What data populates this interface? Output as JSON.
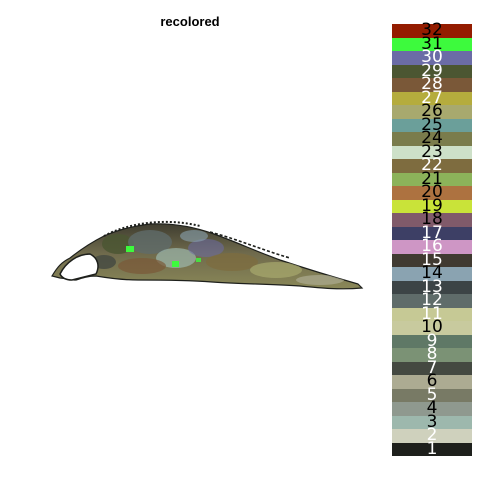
{
  "chart_data": {
    "type": "heatmap",
    "title": "recolored",
    "legend_position": "right",
    "legend": [
      {
        "label": "1",
        "color": "#1e201c",
        "text_color": "#ffffff"
      },
      {
        "label": "2",
        "color": "#cfd1bd",
        "text_color": "#ffffff"
      },
      {
        "label": "3",
        "color": "#9db8ad",
        "text_color": "#000000"
      },
      {
        "label": "4",
        "color": "#8f998f",
        "text_color": "#000000"
      },
      {
        "label": "5",
        "color": "#787a65",
        "text_color": "#ffffff"
      },
      {
        "label": "6",
        "color": "#acab92",
        "text_color": "#000000"
      },
      {
        "label": "7",
        "color": "#444941",
        "text_color": "#ffffff"
      },
      {
        "label": "8",
        "color": "#7b9275",
        "text_color": "#ffffff"
      },
      {
        "label": "9",
        "color": "#5f7866",
        "text_color": "#ffffff"
      },
      {
        "label": "10",
        "color": "#c8ca9e",
        "text_color": "#000000"
      },
      {
        "label": "11",
        "color": "#c6c995",
        "text_color": "#ffffff"
      },
      {
        "label": "12",
        "color": "#5f6c6a",
        "text_color": "#ffffff"
      },
      {
        "label": "13",
        "color": "#3c4446",
        "text_color": "#ffffff"
      },
      {
        "label": "14",
        "color": "#8aa3b1",
        "text_color": "#000000"
      },
      {
        "label": "15",
        "color": "#403a31",
        "text_color": "#ffffff"
      },
      {
        "label": "16",
        "color": "#ce96c5",
        "text_color": "#ffffff"
      },
      {
        "label": "17",
        "color": "#3d3f65",
        "text_color": "#ffffff"
      },
      {
        "label": "18",
        "color": "#805a6a",
        "text_color": "#000000"
      },
      {
        "label": "19",
        "color": "#c9e339",
        "text_color": "#000000"
      },
      {
        "label": "20",
        "color": "#ad7240",
        "text_color": "#000000"
      },
      {
        "label": "21",
        "color": "#8cb35a",
        "text_color": "#000000"
      },
      {
        "label": "22",
        "color": "#7e6c3f",
        "text_color": "#ffffff"
      },
      {
        "label": "23",
        "color": "#cde0c8",
        "text_color": "#000000"
      },
      {
        "label": "24",
        "color": "#7a7c4c",
        "text_color": "#000000"
      },
      {
        "label": "25",
        "color": "#6b9f9a",
        "text_color": "#000000"
      },
      {
        "label": "26",
        "color": "#a8a96e",
        "text_color": "#000000"
      },
      {
        "label": "27",
        "color": "#b5ac3d",
        "text_color": "#ffffff"
      },
      {
        "label": "28",
        "color": "#7a5838",
        "text_color": "#ffffff"
      },
      {
        "label": "29",
        "color": "#4b5632",
        "text_color": "#ffffff"
      },
      {
        "label": "30",
        "color": "#6b6ca6",
        "text_color": "#ffffff"
      },
      {
        "label": "31",
        "color": "#3dfa3d",
        "text_color": "#000000"
      },
      {
        "label": "32",
        "color": "#941c00",
        "text_color": "#000000"
      }
    ]
  }
}
